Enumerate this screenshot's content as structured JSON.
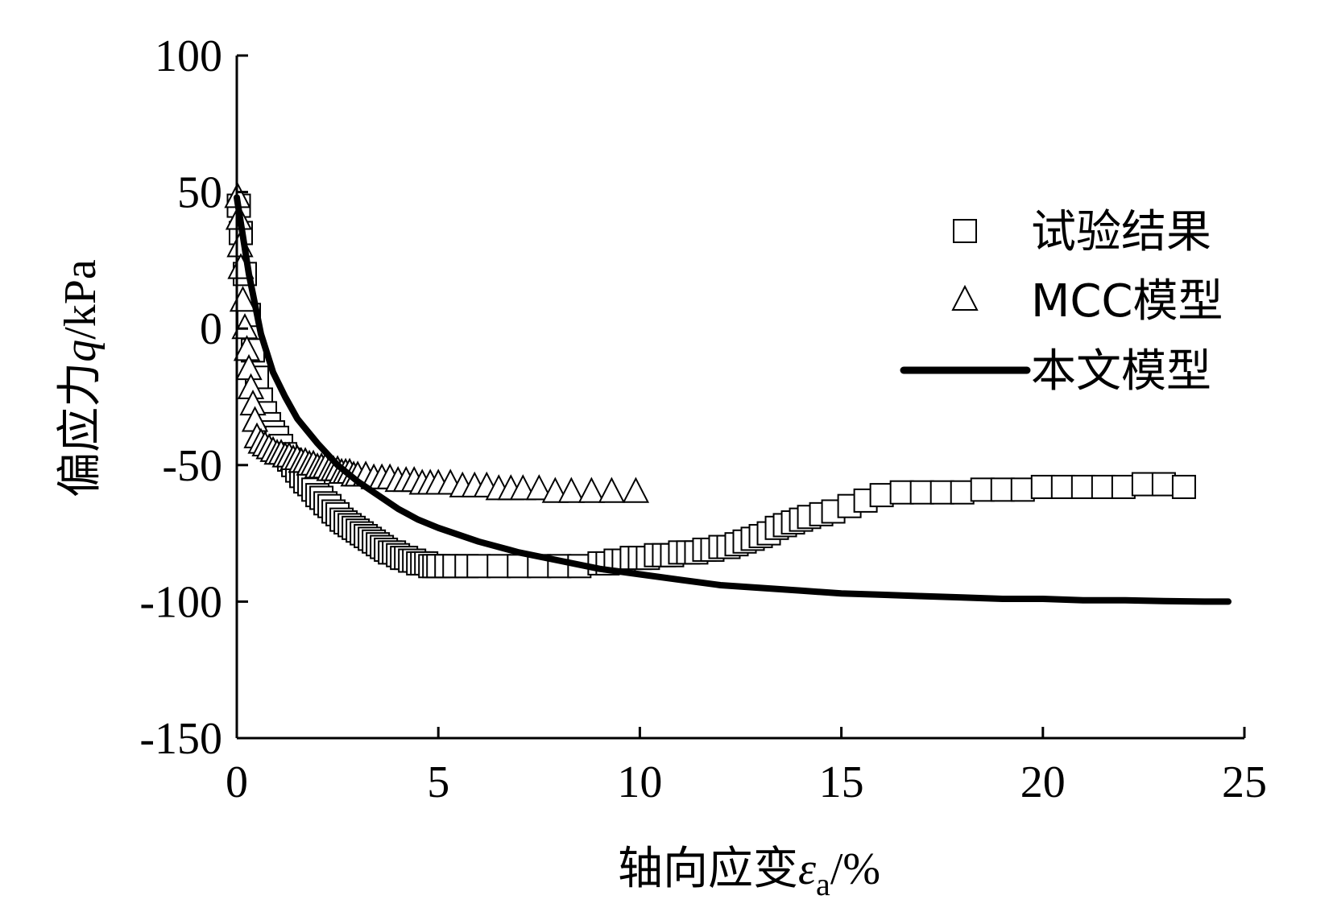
{
  "chart_data": {
    "type": "scatter",
    "title": "",
    "xlabel": "轴向应变εa/%",
    "xlabel_parts": {
      "prefix": "轴向应变",
      "symbol": "ε",
      "subscript": "a",
      "suffix": "/%"
    },
    "ylabel": "偏应力q/kPa",
    "ylabel_parts": {
      "prefix": "偏应力",
      "symbol": "q",
      "suffix": "/kPa"
    },
    "xlim": [
      0,
      25
    ],
    "ylim": [
      -150,
      100
    ],
    "xticks": [
      0,
      5,
      10,
      15,
      20,
      25
    ],
    "xtick_labels": [
      "0",
      "5",
      "10",
      "15",
      "20",
      "25"
    ],
    "yticks": [
      100,
      50,
      0,
      -50,
      -100,
      -150
    ],
    "ytick_labels": [
      "100",
      "50",
      "0",
      "-50",
      "-100",
      "-150"
    ],
    "grid": false,
    "legend_position": "top-right",
    "series": [
      {
        "name": "试验结果",
        "marker": "square",
        "color": "#000000",
        "x": [
          0.05,
          0.1,
          0.2,
          0.3,
          0.4,
          0.5,
          0.6,
          0.7,
          0.8,
          0.9,
          1.0,
          1.1,
          1.2,
          1.3,
          1.4,
          1.5,
          1.6,
          1.7,
          1.8,
          1.9,
          2.0,
          2.1,
          2.2,
          2.3,
          2.4,
          2.5,
          2.6,
          2.7,
          2.8,
          2.9,
          3.0,
          3.1,
          3.2,
          3.3,
          3.4,
          3.5,
          3.6,
          3.7,
          3.8,
          3.9,
          4.0,
          4.1,
          4.2,
          4.3,
          4.4,
          4.5,
          4.6,
          4.7,
          4.8,
          4.9,
          5.0,
          5.2,
          5.4,
          5.7,
          6.0,
          6.5,
          7.0,
          7.5,
          8.0,
          8.5,
          9.0,
          9.2,
          9.4,
          9.6,
          9.8,
          10.0,
          10.2,
          10.4,
          10.6,
          10.8,
          11.0,
          11.2,
          11.4,
          11.6,
          11.8,
          12.0,
          12.2,
          12.4,
          12.6,
          12.8,
          13.0,
          13.2,
          13.4,
          13.6,
          13.8,
          14.0,
          14.2,
          14.5,
          14.8,
          15.2,
          15.6,
          16.0,
          16.5,
          17.0,
          17.5,
          18.0,
          18.5,
          19.0,
          19.5,
          20.0,
          20.5,
          21.0,
          21.5,
          22.0,
          22.5,
          23.0,
          23.5
        ],
        "y": [
          45,
          35,
          20,
          5,
          -8,
          -18,
          -26,
          -31,
          -35,
          -38,
          -40,
          -43,
          -46,
          -48,
          -50,
          -52,
          -54,
          -56,
          -57,
          -59,
          -61,
          -62,
          -64,
          -65,
          -67,
          -68,
          -70,
          -71,
          -72,
          -73,
          -74,
          -75,
          -76,
          -77,
          -78,
          -79,
          -80,
          -81,
          -82,
          -82,
          -83,
          -84,
          -84,
          -85,
          -85,
          -86,
          -86,
          -86,
          -87,
          -87,
          -87,
          -87,
          -87,
          -87,
          -87,
          -87,
          -87,
          -87,
          -87,
          -87,
          -86,
          -86,
          -85,
          -85,
          -84,
          -84,
          -84,
          -83,
          -83,
          -83,
          -82,
          -82,
          -82,
          -81,
          -81,
          -80,
          -80,
          -79,
          -78,
          -77,
          -76,
          -75,
          -73,
          -72,
          -71,
          -70,
          -69,
          -68,
          -67,
          -65,
          -63,
          -61,
          -60,
          -60,
          -60,
          -60,
          -59,
          -59,
          -59,
          -58,
          -58,
          -58,
          -58,
          -58,
          -57,
          -57,
          -58
        ]
      },
      {
        "name": "MCC模型",
        "marker": "triangle",
        "color": "#000000",
        "x": [
          0.02,
          0.05,
          0.08,
          0.1,
          0.15,
          0.2,
          0.25,
          0.3,
          0.35,
          0.4,
          0.45,
          0.5,
          0.6,
          0.7,
          0.8,
          0.9,
          1.0,
          1.1,
          1.2,
          1.3,
          1.4,
          1.5,
          1.6,
          1.7,
          1.8,
          1.9,
          2.0,
          2.1,
          2.2,
          2.3,
          2.4,
          2.5,
          2.6,
          2.7,
          2.8,
          2.9,
          3.0,
          3.2,
          3.4,
          3.6,
          3.8,
          4.0,
          4.2,
          4.4,
          4.6,
          4.8,
          5.0,
          5.3,
          5.6,
          5.9,
          6.2,
          6.5,
          6.8,
          7.1,
          7.5,
          7.9,
          8.3,
          8.8,
          9.3,
          9.9
        ],
        "y": [
          48,
          40,
          30,
          22,
          10,
          0,
          -8,
          -15,
          -22,
          -28,
          -34,
          -40,
          -42,
          -43,
          -44,
          -45,
          -46,
          -46,
          -47,
          -47,
          -48,
          -48,
          -49,
          -49,
          -50,
          -50,
          -51,
          -51,
          -51,
          -52,
          -52,
          -52,
          -53,
          -53,
          -53,
          -54,
          -54,
          -54,
          -55,
          -55,
          -55,
          -56,
          -56,
          -56,
          -57,
          -57,
          -57,
          -57,
          -58,
          -58,
          -58,
          -59,
          -59,
          -59,
          -59,
          -60,
          -60,
          -60,
          -60,
          -60
        ]
      },
      {
        "name": "本文模型",
        "marker": "line",
        "color": "#000000",
        "x": [
          0,
          0.3,
          0.6,
          0.9,
          1.2,
          1.5,
          2.0,
          2.5,
          3.0,
          3.5,
          4.0,
          4.5,
          5.0,
          6.0,
          7.0,
          8.0,
          9.0,
          10.0,
          11.0,
          12.0,
          13.0,
          14.0,
          15.0,
          16.0,
          17.0,
          18.0,
          19.0,
          20.0,
          21.0,
          22.0,
          23.0,
          24.0,
          24.6
        ],
        "y": [
          48,
          20,
          -2,
          -16,
          -25,
          -33,
          -42,
          -50,
          -56,
          -61,
          -66,
          -70,
          -73,
          -78,
          -82,
          -85,
          -88,
          -90,
          -92,
          -94,
          -95,
          -96,
          -97,
          -97.5,
          -98,
          -98.5,
          -99,
          -99,
          -99.5,
          -99.5,
          -99.8,
          -100,
          -100
        ]
      }
    ]
  }
}
